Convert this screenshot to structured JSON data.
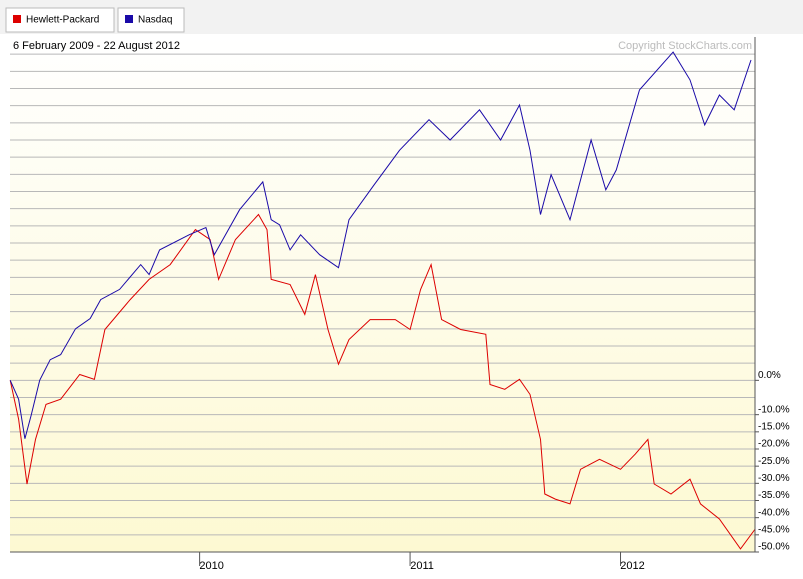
{
  "chart_data": {
    "type": "line",
    "legend": "top-left",
    "subtitle": "6 February 2009 - 22 August 2012",
    "annotation": "Copyright StockCharts.com",
    "xlim": [
      2009.099,
      2012.639
    ],
    "xticks": [
      2010,
      2011,
      2012
    ],
    "ylim": [
      -50,
      100
    ],
    "yticks": [
      {
        "value": 0,
        "label": "0.0%"
      },
      {
        "value": -10,
        "label": "-10.0%"
      },
      {
        "value": -15,
        "label": "-15.0%"
      },
      {
        "value": -20,
        "label": "-20.0%"
      },
      {
        "value": -25,
        "label": "-25.0%"
      },
      {
        "value": -30,
        "label": "-30.0%"
      },
      {
        "value": -35,
        "label": "-35.0%"
      },
      {
        "value": -40,
        "label": "-40.0%"
      },
      {
        "value": -45,
        "label": "-45.0%"
      },
      {
        "value": -50,
        "label": "-50.0%"
      }
    ],
    "ygrid": [
      -50,
      -45,
      -40,
      -35,
      -30,
      -25,
      -20,
      -15,
      -10,
      -5,
      0,
      5,
      10,
      15,
      20,
      25,
      30,
      35,
      40,
      45,
      50,
      55,
      60,
      65,
      70,
      75,
      80,
      85,
      90,
      95
    ],
    "grid": true,
    "series": [
      {
        "name": "Hewlett-Packard",
        "color": "#dd0000",
        "x": [
          2009.1,
          2009.14,
          2009.18,
          2009.22,
          2009.27,
          2009.34,
          2009.43,
          2009.5,
          2009.55,
          2009.67,
          2009.76,
          2009.86,
          2009.98,
          2010.05,
          2010.09,
          2010.17,
          2010.28,
          2010.32,
          2010.34,
          2010.43,
          2010.5,
          2010.55,
          2010.61,
          2010.66,
          2010.71,
          2010.81,
          2010.93,
          2011.0,
          2011.05,
          2011.1,
          2011.15,
          2011.24,
          2011.36,
          2011.38,
          2011.45,
          2011.52,
          2011.57,
          2011.62,
          2011.64,
          2011.69,
          2011.76,
          2011.81,
          2011.9,
          2012.0,
          2012.07,
          2012.13,
          2012.16,
          2012.24,
          2012.33,
          2012.38,
          2012.47,
          2012.57,
          2012.64
        ],
        "values": [
          0,
          -11.3,
          -30.2,
          -17.2,
          -7,
          -5.5,
          1.7,
          0.3,
          14.8,
          23.5,
          29.4,
          33.7,
          43.9,
          41,
          29.4,
          41,
          48.3,
          43.9,
          29.4,
          27.9,
          19.2,
          30.8,
          14.8,
          4.7,
          11.9,
          17.7,
          17.7,
          14.8,
          26.5,
          33.7,
          17.7,
          14.8,
          13.4,
          -1.2,
          -2.6,
          0.3,
          -4.1,
          -17.2,
          -33.1,
          -34.6,
          -36,
          -25.9,
          -23,
          -25.9,
          -21.5,
          -17.2,
          -30.2,
          -33.1,
          -28.8,
          -36,
          -40.4,
          -49.1,
          -43.3
        ]
      },
      {
        "name": "Nasdaq",
        "color": "#1a0aa8",
        "x": [
          2009.1,
          2009.14,
          2009.17,
          2009.2,
          2009.24,
          2009.29,
          2009.34,
          2009.41,
          2009.48,
          2009.53,
          2009.62,
          2009.72,
          2009.76,
          2009.81,
          2009.95,
          2010.03,
          2010.07,
          2010.19,
          2010.3,
          2010.34,
          2010.38,
          2010.43,
          2010.48,
          2010.57,
          2010.66,
          2010.71,
          2010.83,
          2010.95,
          2011.09,
          2011.19,
          2011.33,
          2011.43,
          2011.52,
          2011.57,
          2011.62,
          2011.67,
          2011.76,
          2011.86,
          2011.93,
          2011.98,
          2012.09,
          2012.25,
          2012.33,
          2012.4,
          2012.47,
          2012.54,
          2012.62
        ],
        "values": [
          0,
          -5.5,
          -17,
          -10,
          0,
          6,
          7.5,
          15,
          18,
          23.5,
          26.5,
          33.7,
          30.8,
          38,
          42.4,
          44.5,
          36.6,
          49.7,
          57.8,
          46.8,
          45.3,
          38,
          42.4,
          36.6,
          32.8,
          46.8,
          57,
          67,
          75.9,
          70,
          78.8,
          70,
          80.2,
          67,
          48.3,
          59.9,
          46.8,
          70,
          55.5,
          61.3,
          84.6,
          95.6,
          87.5,
          74.4,
          83.1,
          78.8,
          93.3
        ]
      }
    ]
  }
}
